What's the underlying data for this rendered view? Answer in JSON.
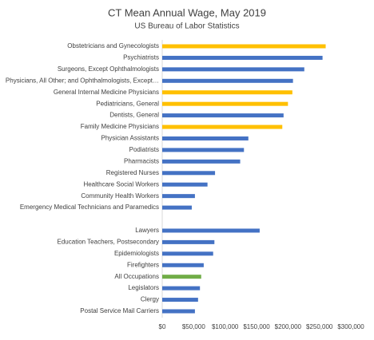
{
  "chart_data": {
    "type": "hbar",
    "title": "CT Mean Annual Wage, May 2019",
    "subtitle": "US Bureau of Labor Statistics",
    "categories": [
      "Obstetricians and Gynecologists",
      "Psychiatrists",
      "Surgeons, Except Ophthalmologists",
      "Physicians, All Other; and Ophthalmologists, Except…",
      "General Internal Medicine Physicians",
      "Pediatricians, General",
      "Dentists, General",
      "Family Medicine Physicians",
      "Physician Assistants",
      "Podiatrists",
      "Pharmacists",
      "Registered Nurses",
      "Healthcare Social Workers",
      "Community Health Workers",
      "Emergency Medical Technicians and Paramedics",
      null,
      "Lawyers",
      "Education Teachers, Postsecondary",
      "Epidemiologists",
      "Firefighters",
      "All Occupations",
      "Legislators",
      "Clergy",
      "Postal Service Mail Carriers"
    ],
    "values": [
      260000,
      255000,
      226000,
      208000,
      207000,
      200000,
      193000,
      191000,
      137000,
      130000,
      124000,
      84000,
      72000,
      52000,
      47000,
      null,
      155000,
      83000,
      81000,
      66000,
      62000,
      60000,
      57000,
      52000
    ],
    "colors": [
      "#ffc000",
      "#4472c4",
      "#4472c4",
      "#4472c4",
      "#ffc000",
      "#ffc000",
      "#4472c4",
      "#ffc000",
      "#4472c4",
      "#4472c4",
      "#4472c4",
      "#4472c4",
      "#4472c4",
      "#4472c4",
      "#4472c4",
      null,
      "#4472c4",
      "#4472c4",
      "#4472c4",
      "#4472c4",
      "#70ad47",
      "#4472c4",
      "#4472c4",
      "#4472c4"
    ],
    "xlim": [
      0,
      300000
    ],
    "xticks": [
      {
        "value": 0,
        "label": "$0"
      },
      {
        "value": 50000,
        "label": "$50,000"
      },
      {
        "value": 100000,
        "label": "$100,000"
      },
      {
        "value": 150000,
        "label": "$150,000"
      },
      {
        "value": 200000,
        "label": "$200,000"
      },
      {
        "value": 250000,
        "label": "$250,000"
      },
      {
        "value": 300000,
        "label": "$300,000"
      }
    ],
    "grid": false
  }
}
